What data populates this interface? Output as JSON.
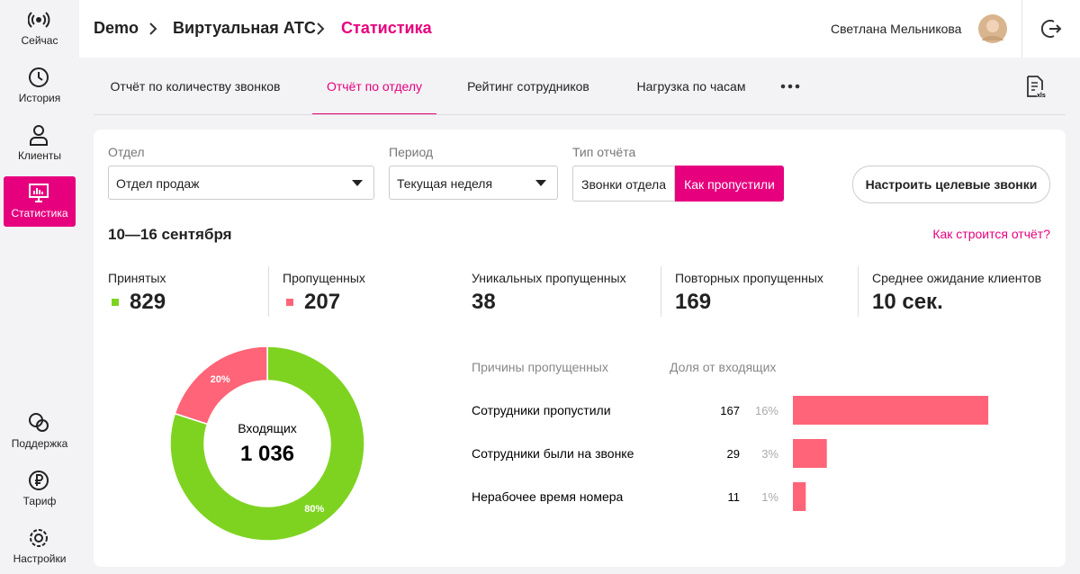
{
  "sidebar": {
    "top": [
      "Сейчас",
      "История",
      "Клиенты",
      "Статистика"
    ],
    "bottom": [
      "Поддержка",
      "Тариф",
      "Настройки"
    ],
    "active": 3
  },
  "header": {
    "breadcrumbs": [
      "Demo",
      "Виртуальная АТС",
      "Статистика"
    ],
    "user": "Светлана Мельникова"
  },
  "tabs": {
    "items": [
      "Отчёт по количеству звонков",
      "Отчёт по отделу",
      "Рейтинг сотрудников",
      "Нагрузка по часам"
    ],
    "active": 1
  },
  "filters": {
    "department": {
      "label": "Отдел",
      "value": "Отдел продаж"
    },
    "period": {
      "label": "Период",
      "value": "Текущая неделя"
    },
    "report_type": {
      "label": "Тип отчёта",
      "options": [
        "Звонки отдела",
        "Как пропустили"
      ],
      "active": 1
    },
    "button": "Настроить целевые звонки"
  },
  "date_range": "10—16 сентября",
  "help_link": "Как строится отчёт?",
  "stats": [
    {
      "label": "Принятых",
      "value": 829,
      "color": "#7ed321"
    },
    {
      "label": "Пропущенных",
      "value": 207,
      "color": "#ff6478"
    },
    {
      "label": "Уникальных пропущенных",
      "value": 38
    },
    {
      "label": "Повторных пропущенных",
      "value": 169
    },
    {
      "label": "Среднее ожидание клиентов",
      "value": "10 сек."
    }
  ],
  "chart_data": [
    {
      "type": "pie",
      "center_label": "Входящих",
      "total": {
        "value": 1036,
        "label": "1 036"
      },
      "values": [
        80,
        20
      ],
      "value_labels": [
        "80%",
        "20%"
      ],
      "colors": [
        "#7ed321",
        "#ff6478"
      ]
    },
    {
      "type": "bar",
      "category_header": "Причины пропущенных",
      "value_header": "Доля от входящих",
      "categories": [
        "Сотрудники пропустили",
        "Сотрудники были на звонке",
        "Нерабочее время номера"
      ],
      "values": [
        167,
        29,
        11
      ],
      "share_labels": [
        "16%",
        "3%",
        "1%"
      ],
      "color": "#ff6478"
    }
  ]
}
